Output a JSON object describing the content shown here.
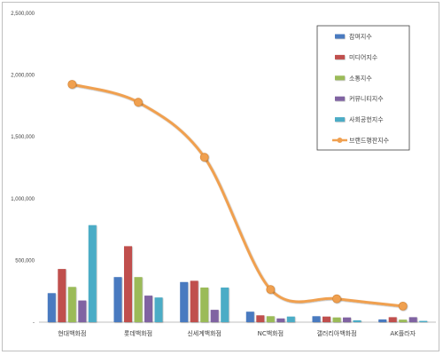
{
  "chart_data": {
    "type": "bar",
    "categories": [
      "현대백화점",
      "롯데백화점",
      "신세계백화점",
      "NC백화점",
      "갤러리아백화점",
      "AK플라자"
    ],
    "ylim": [
      0,
      2500000
    ],
    "yticks": [
      0,
      500000,
      1000000,
      1500000,
      2000000,
      2500000
    ],
    "ytick_labels": [
      "-",
      "500,000",
      "1,000,000",
      "1,500,000",
      "2,000,000",
      "2,500,000"
    ],
    "grid": false,
    "legend_position": "top-right",
    "series": [
      {
        "name": "참여지수",
        "kind": "bar",
        "color": "#4a7ac0",
        "values": [
          235000,
          365000,
          325000,
          85000,
          48000,
          22000
        ]
      },
      {
        "name": "미디어지수",
        "kind": "bar",
        "color": "#c0504d",
        "values": [
          430000,
          615000,
          335000,
          55000,
          45000,
          40000
        ]
      },
      {
        "name": "소통지수",
        "kind": "bar",
        "color": "#9bbb59",
        "values": [
          285000,
          365000,
          280000,
          48000,
          38000,
          20000
        ]
      },
      {
        "name": "커뮤니티지수",
        "kind": "bar",
        "color": "#8064a2",
        "values": [
          175000,
          215000,
          100000,
          30000,
          38000,
          40000
        ]
      },
      {
        "name": "사회공헌지수",
        "kind": "bar",
        "color": "#4bacc6",
        "values": [
          785000,
          200000,
          280000,
          45000,
          15000,
          10000
        ]
      },
      {
        "name": "브랜드평판지수",
        "kind": "line",
        "color": "#f0a050",
        "values": [
          1925000,
          1780000,
          1335000,
          265000,
          190000,
          130000
        ]
      }
    ]
  }
}
